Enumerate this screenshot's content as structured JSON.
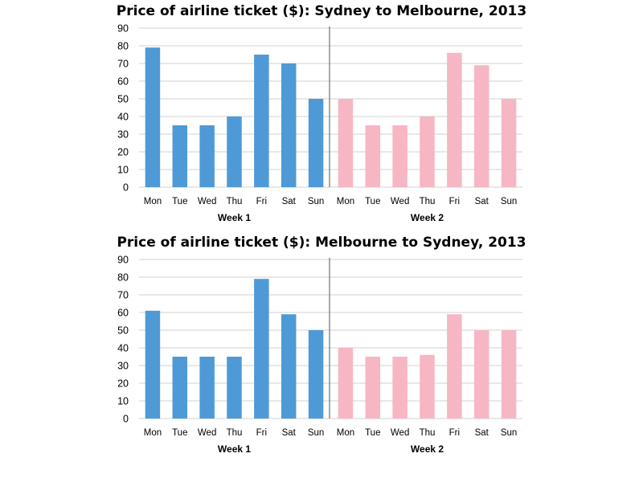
{
  "chart_data": [
    {
      "type": "bar",
      "title": "Price of airline ticket ($): Sydney to Melbourne, 2013",
      "ylim": [
        0,
        90
      ],
      "yticks": [
        0,
        10,
        20,
        30,
        40,
        50,
        60,
        70,
        80,
        90
      ],
      "grid": true,
      "categories": [
        "Mon",
        "Tue",
        "Wed",
        "Thu",
        "Fri",
        "Sat",
        "Sun"
      ],
      "groups": [
        {
          "name": "Week 1",
          "color": "#4e9ad6",
          "values": [
            79,
            35,
            35,
            40,
            75,
            70,
            50
          ]
        },
        {
          "name": "Week 2",
          "color": "#f7b6c4",
          "values": [
            50,
            35,
            35,
            40,
            76,
            69,
            50
          ]
        }
      ]
    },
    {
      "type": "bar",
      "title": "Price of airline ticket ($): Melbourne to Sydney, 2013",
      "ylim": [
        0,
        90
      ],
      "yticks": [
        0,
        10,
        20,
        30,
        40,
        50,
        60,
        70,
        80,
        90
      ],
      "grid": true,
      "categories": [
        "Mon",
        "Tue",
        "Wed",
        "Thu",
        "Fri",
        "Sat",
        "Sun"
      ],
      "groups": [
        {
          "name": "Week 1",
          "color": "#4e9ad6",
          "values": [
            61,
            35,
            35,
            35,
            79,
            59,
            50
          ]
        },
        {
          "name": "Week 2",
          "color": "#f7b6c4",
          "values": [
            40,
            35,
            35,
            36,
            59,
            50,
            50
          ]
        }
      ]
    }
  ]
}
